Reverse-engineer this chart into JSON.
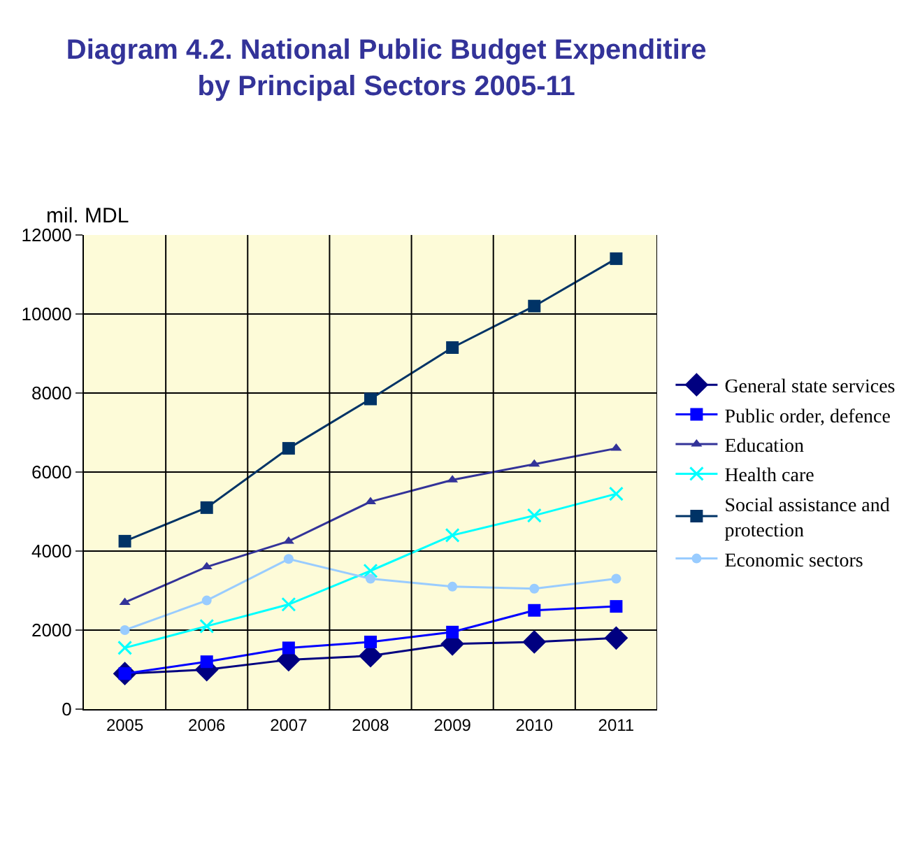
{
  "chart_data": {
    "type": "line",
    "title": "Diagram 4.2. National Public Budget Expenditire\nby Principal Sectors 2005-11",
    "ylabel": "mil. MDL",
    "categories": [
      "2005",
      "2006",
      "2007",
      "2008",
      "2009",
      "2010",
      "2011"
    ],
    "ylim": [
      0,
      12000
    ],
    "yticks": [
      0,
      2000,
      4000,
      6000,
      8000,
      10000,
      12000
    ],
    "grid": true,
    "legend": "right",
    "series": [
      {
        "name": "General state services",
        "color": "#000080",
        "marker": "diamond",
        "values": [
          900,
          1000,
          1250,
          1350,
          1650,
          1700,
          1800
        ]
      },
      {
        "name": "Public order, defence",
        "color": "#0000ff",
        "marker": "square",
        "values": [
          900,
          1200,
          1550,
          1700,
          1950,
          2500,
          2600
        ]
      },
      {
        "name": "Education",
        "color": "#333399",
        "marker": "triangle",
        "values": [
          2700,
          3600,
          4250,
          5250,
          5800,
          6200,
          6600
        ]
      },
      {
        "name": "Health care",
        "color": "#00ffff",
        "marker": "cross",
        "values": [
          1550,
          2100,
          2650,
          3500,
          4400,
          4900,
          5450
        ]
      },
      {
        "name": "Social assistance and protection",
        "color": "#003366",
        "marker": "square",
        "values": [
          4250,
          5100,
          6600,
          7850,
          9150,
          10200,
          11400
        ]
      },
      {
        "name": "Economic sectors",
        "color": "#99ccff",
        "marker": "circle",
        "values": [
          2000,
          2750,
          3800,
          3300,
          3100,
          3050,
          3300
        ]
      }
    ]
  }
}
